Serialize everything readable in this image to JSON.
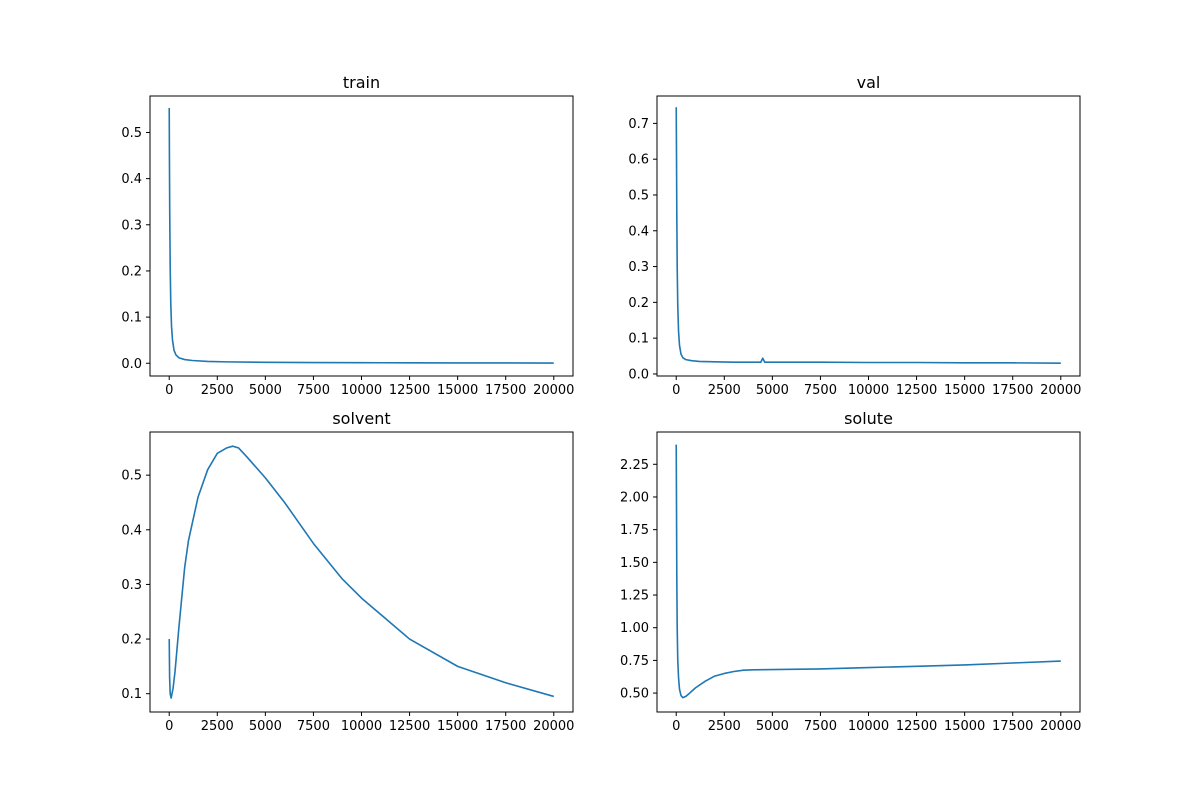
{
  "chart_data": [
    {
      "type": "line",
      "title": "train",
      "xlabel": "",
      "ylabel": "",
      "xlim": [
        -1000,
        21000
      ],
      "ylim": [
        -0.0276,
        0.579
      ],
      "xticks": [
        0,
        2500,
        5000,
        7500,
        10000,
        12500,
        15000,
        17500,
        20000
      ],
      "xtick_labels": [
        "0",
        "2500",
        "5000",
        "7500",
        "10000",
        "12500",
        "15000",
        "17500",
        "20000"
      ],
      "yticks": [
        0,
        0.1,
        0.2,
        0.3,
        0.4,
        0.5
      ],
      "ytick_labels": [
        "0.0",
        "0.1",
        "0.2",
        "0.3",
        "0.4",
        "0.5"
      ],
      "grid": false,
      "series": [
        {
          "color": "#1f77b4",
          "x": [
            0,
            10,
            25,
            50,
            80,
            120,
            170,
            250,
            350,
            500,
            800,
            1200,
            2000,
            3000,
            5000,
            7500,
            10000,
            12500,
            15000,
            17500,
            20000
          ],
          "y": [
            0.553,
            0.45,
            0.33,
            0.21,
            0.13,
            0.08,
            0.05,
            0.028,
            0.018,
            0.012,
            0.008,
            0.006,
            0.004,
            0.003,
            0.002,
            0.0015,
            0.0012,
            0.001,
            0.0008,
            0.0006,
            0.0005
          ]
        }
      ]
    },
    {
      "type": "line",
      "title": "val",
      "xlabel": "",
      "ylabel": "",
      "xlim": [
        -1000,
        21000
      ],
      "ylim": [
        -0.0057,
        0.7765
      ],
      "xticks": [
        0,
        2500,
        5000,
        7500,
        10000,
        12500,
        15000,
        17500,
        20000
      ],
      "xtick_labels": [
        "0",
        "2500",
        "5000",
        "7500",
        "10000",
        "12500",
        "15000",
        "17500",
        "20000"
      ],
      "yticks": [
        0,
        0.1,
        0.2,
        0.3,
        0.4,
        0.5,
        0.6,
        0.7
      ],
      "ytick_labels": [
        "0.0",
        "0.1",
        "0.2",
        "0.3",
        "0.4",
        "0.5",
        "0.6",
        "0.7"
      ],
      "grid": false,
      "series": [
        {
          "color": "#1f77b4",
          "x": [
            0,
            15,
            30,
            50,
            80,
            120,
            170,
            250,
            350,
            500,
            800,
            1200,
            2000,
            3000,
            4400,
            4500,
            4600,
            5000,
            7500,
            10000,
            12500,
            15000,
            17500,
            20000
          ],
          "y": [
            0.745,
            0.6,
            0.45,
            0.3,
            0.19,
            0.12,
            0.08,
            0.055,
            0.045,
            0.04,
            0.037,
            0.035,
            0.034,
            0.033,
            0.033,
            0.044,
            0.033,
            0.033,
            0.033,
            0.032,
            0.032,
            0.031,
            0.031,
            0.03
          ]
        }
      ]
    },
    {
      "type": "line",
      "title": "solvent",
      "xlabel": "",
      "ylabel": "",
      "xlim": [
        -1000,
        21000
      ],
      "ylim": [
        0.0665,
        0.579
      ],
      "xticks": [
        0,
        2500,
        5000,
        7500,
        10000,
        12500,
        15000,
        17500,
        20000
      ],
      "xtick_labels": [
        "0",
        "2500",
        "5000",
        "7500",
        "10000",
        "12500",
        "15000",
        "17500",
        "20000"
      ],
      "yticks": [
        0.1,
        0.2,
        0.3,
        0.4,
        0.5
      ],
      "ytick_labels": [
        "0.1",
        "0.2",
        "0.3",
        "0.4",
        "0.5"
      ],
      "grid": false,
      "series": [
        {
          "color": "#1f77b4",
          "x": [
            0,
            20,
            50,
            100,
            200,
            300,
            500,
            800,
            1000,
            1500,
            2000,
            2500,
            3000,
            3300,
            3600,
            4000,
            5000,
            6000,
            7500,
            9000,
            10000,
            12500,
            15000,
            17500,
            20000
          ],
          "y": [
            0.2,
            0.13,
            0.1,
            0.092,
            0.11,
            0.14,
            0.22,
            0.33,
            0.38,
            0.46,
            0.51,
            0.54,
            0.55,
            0.553,
            0.55,
            0.535,
            0.495,
            0.45,
            0.375,
            0.31,
            0.275,
            0.2,
            0.15,
            0.12,
            0.095
          ]
        }
      ]
    },
    {
      "type": "line",
      "title": "solute",
      "xlabel": "",
      "ylabel": "",
      "xlim": [
        -1000,
        21000
      ],
      "ylim": [
        0.3553,
        2.497
      ],
      "xticks": [
        0,
        2500,
        5000,
        7500,
        10000,
        12500,
        15000,
        17500,
        20000
      ],
      "xtick_labels": [
        "0",
        "2500",
        "5000",
        "7500",
        "10000",
        "12500",
        "15000",
        "17500",
        "20000"
      ],
      "yticks": [
        0.5,
        0.75,
        1.0,
        1.25,
        1.5,
        1.75,
        2.0,
        2.25
      ],
      "ytick_labels": [
        "0.50",
        "0.75",
        "1.00",
        "1.25",
        "1.50",
        "1.75",
        "2.00",
        "2.25"
      ],
      "grid": false,
      "series": [
        {
          "color": "#1f77b4",
          "x": [
            0,
            15,
            30,
            50,
            80,
            120,
            170,
            250,
            350,
            500,
            700,
            1000,
            1500,
            2000,
            2500,
            3000,
            3500,
            4000,
            5000,
            7500,
            10000,
            12500,
            15000,
            17500,
            20000
          ],
          "y": [
            2.4,
            1.9,
            1.4,
            1.0,
            0.75,
            0.62,
            0.53,
            0.48,
            0.465,
            0.475,
            0.5,
            0.54,
            0.59,
            0.63,
            0.65,
            0.665,
            0.675,
            0.678,
            0.68,
            0.685,
            0.695,
            0.705,
            0.715,
            0.73,
            0.745
          ]
        }
      ]
    }
  ]
}
